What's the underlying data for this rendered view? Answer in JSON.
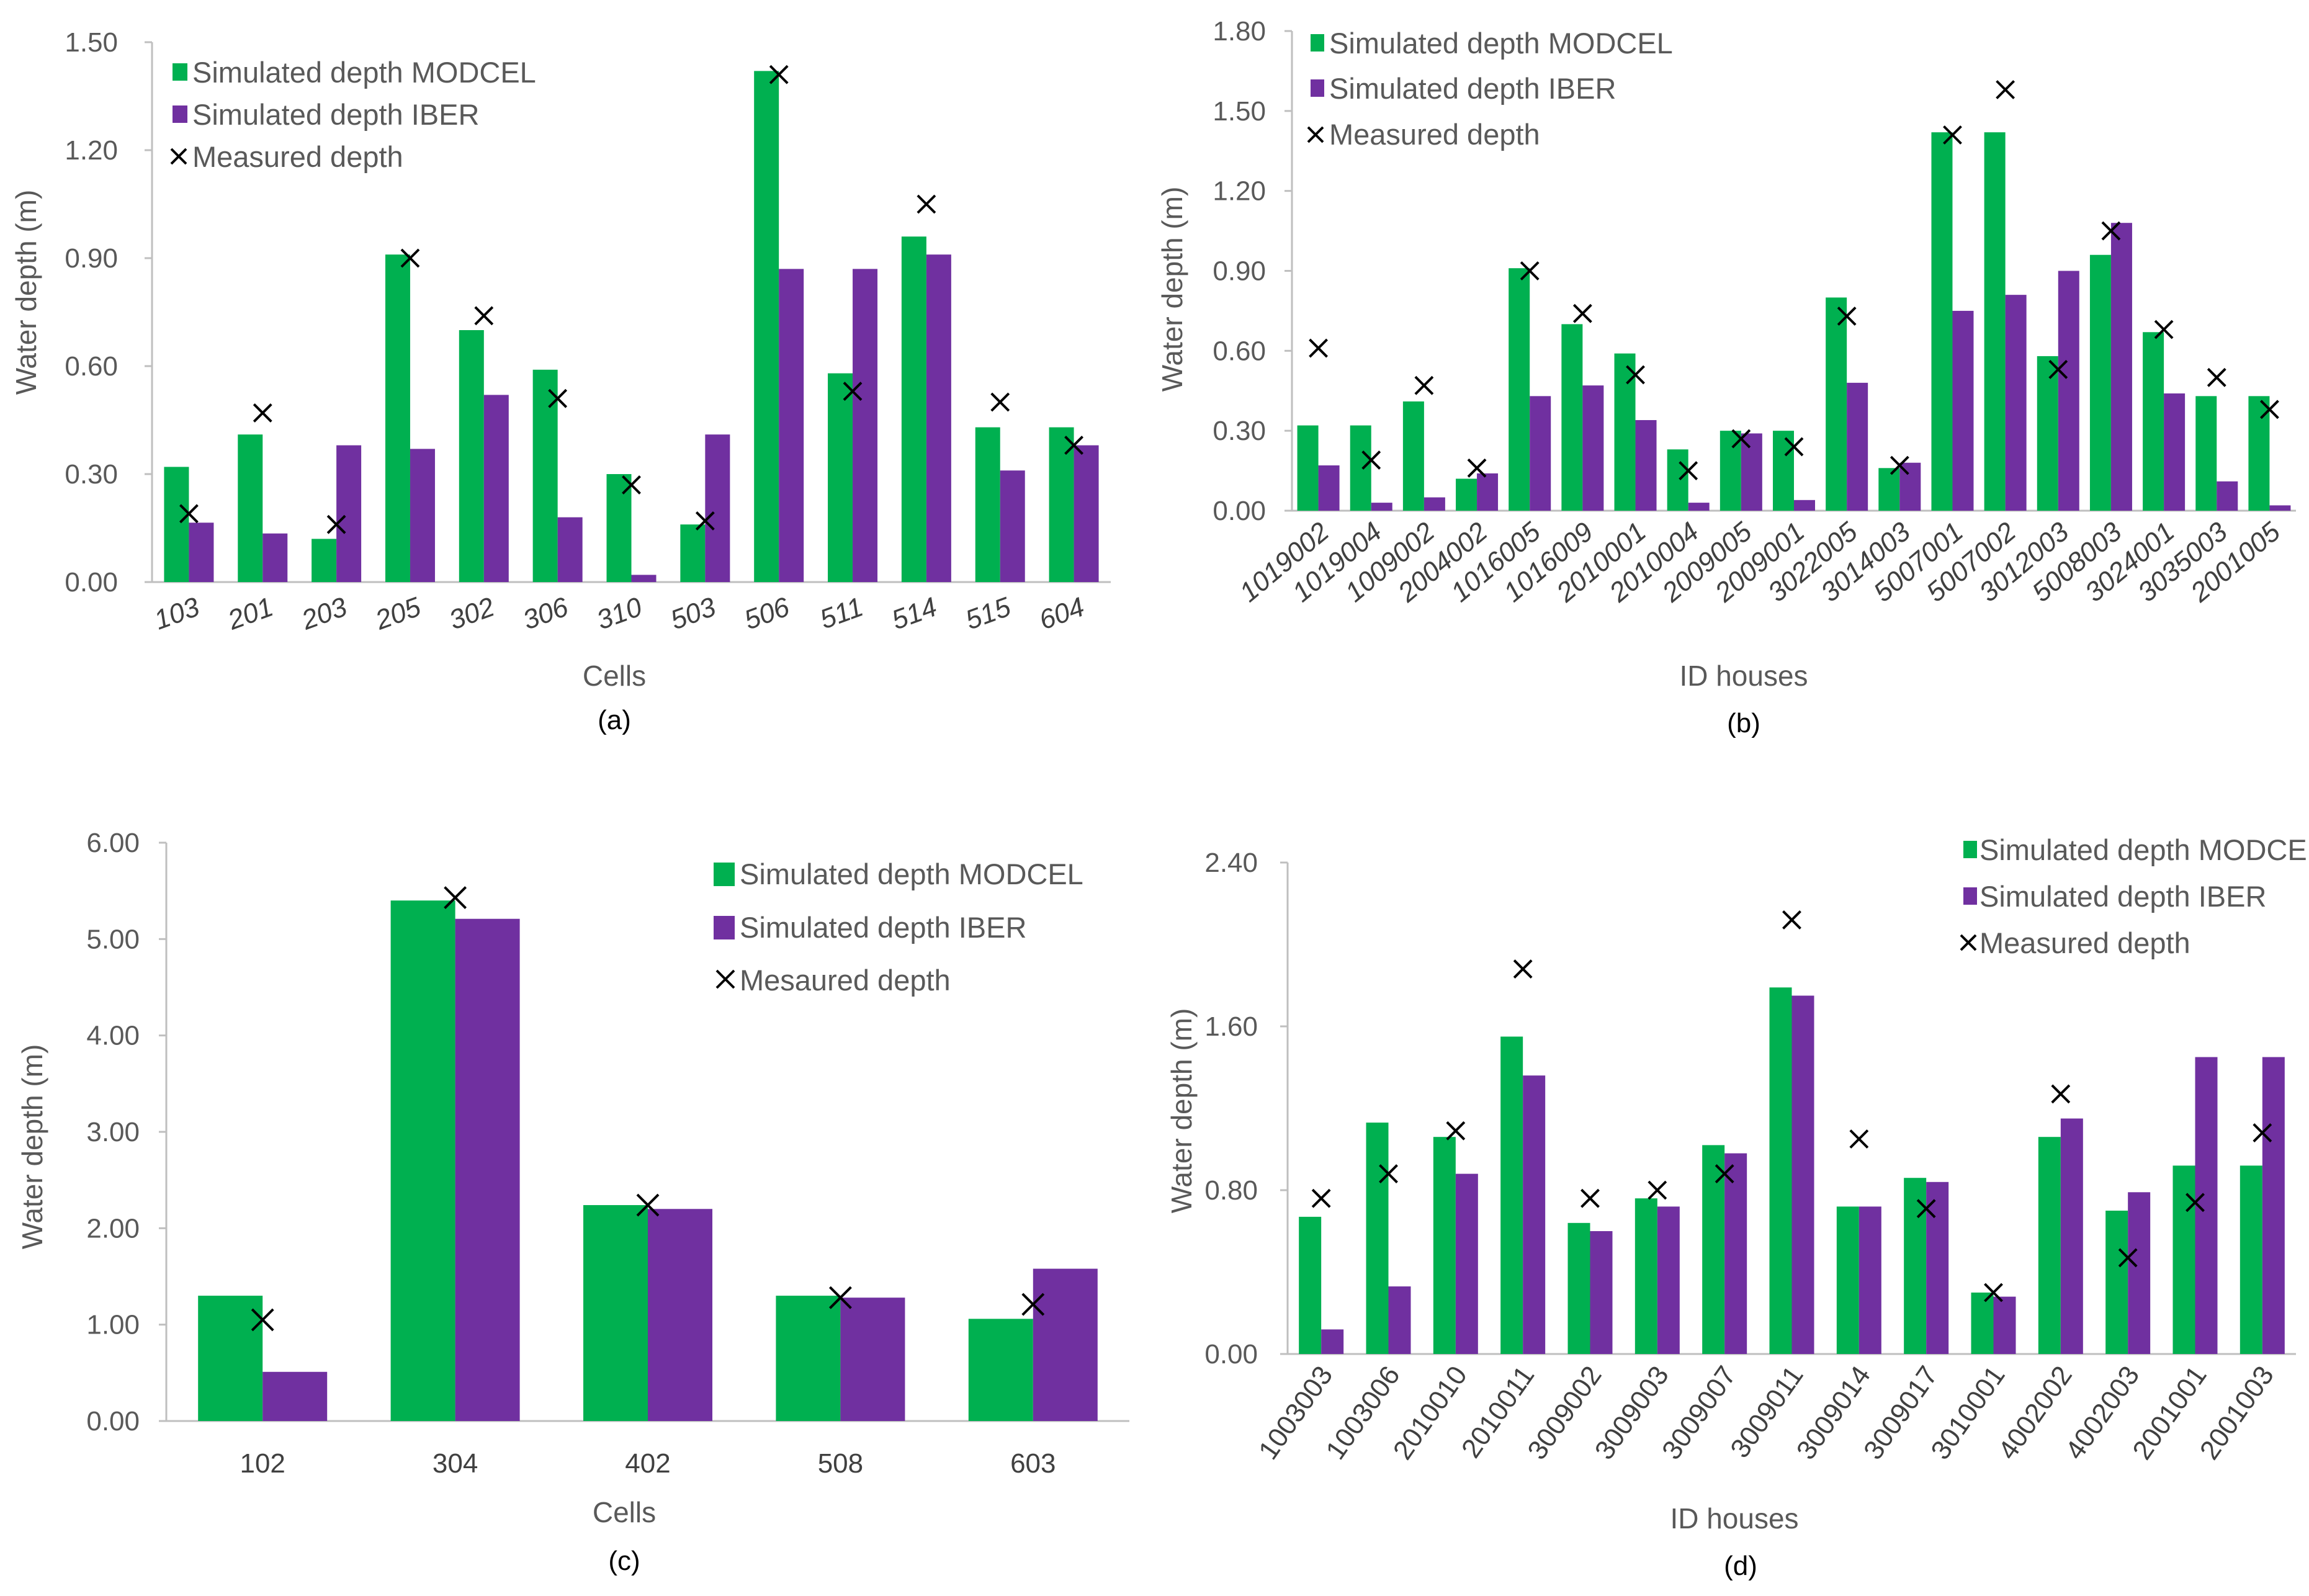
{
  "colors": {
    "modcel": "#00b050",
    "iber": "#7030a0",
    "measured": "#000000",
    "axis": "#bfbfbf",
    "text": "#595959"
  },
  "chart_data": [
    {
      "type": "bar",
      "caption": "(a)",
      "xlabel": "Cells",
      "ylabel": "Water depth (m)",
      "ylim": [
        0,
        1.5
      ],
      "yticks": [
        "0.00",
        "0.30",
        "0.60",
        "0.90",
        "1.20",
        "1.50"
      ],
      "categories": [
        "103",
        "201",
        "203",
        "205",
        "302",
        "306",
        "310",
        "503",
        "506",
        "511",
        "514",
        "515",
        "604"
      ],
      "series": [
        {
          "name": "Simulated depth MODCEL",
          "kind": "bar",
          "values": [
            0.32,
            0.41,
            0.12,
            0.91,
            0.7,
            0.59,
            0.3,
            0.16,
            1.42,
            0.58,
            0.96,
            0.43,
            0.43
          ]
        },
        {
          "name": "Simulated depth IBER",
          "kind": "bar",
          "values": [
            0.165,
            0.135,
            0.38,
            0.37,
            0.52,
            0.18,
            0.02,
            0.41,
            0.87,
            0.87,
            0.91,
            0.31,
            0.38
          ]
        },
        {
          "name": "Measured depth",
          "kind": "marker",
          "values": [
            0.19,
            0.47,
            0.16,
            0.9,
            0.74,
            0.51,
            0.27,
            0.17,
            1.41,
            0.53,
            1.05,
            0.5,
            0.38
          ]
        }
      ],
      "legend": "top-left"
    },
    {
      "type": "bar",
      "caption": "(b)",
      "xlabel": "ID houses",
      "ylabel": "Water depth (m)",
      "ylim": [
        0,
        1.8
      ],
      "yticks": [
        "0.00",
        "0.30",
        "0.60",
        "0.90",
        "1.20",
        "1.50",
        "1.80"
      ],
      "categories": [
        "1019002",
        "1019004",
        "1009002",
        "2004002",
        "1016005",
        "1016009",
        "2010001",
        "2010004",
        "2009005",
        "2009001",
        "3022005",
        "3014003",
        "5007001",
        "5007002",
        "3012003",
        "5008003",
        "3024001",
        "3035003",
        "2001005"
      ],
      "series": [
        {
          "name": "Simulated depth MODCEL",
          "kind": "bar",
          "values": [
            0.32,
            0.32,
            0.41,
            0.12,
            0.91,
            0.7,
            0.59,
            0.23,
            0.3,
            0.3,
            0.8,
            0.16,
            1.42,
            1.42,
            0.58,
            0.96,
            0.67,
            0.43,
            0.43
          ]
        },
        {
          "name": "Simulated depth IBER",
          "kind": "bar",
          "values": [
            0.17,
            0.03,
            0.05,
            0.14,
            0.43,
            0.47,
            0.34,
            0.03,
            0.29,
            0.04,
            0.48,
            0.18,
            0.75,
            0.81,
            0.9,
            1.08,
            0.44,
            0.11,
            0.02
          ]
        },
        {
          "name": "Measured depth",
          "kind": "marker",
          "values": [
            0.61,
            0.19,
            0.47,
            0.16,
            0.9,
            0.74,
            0.51,
            0.15,
            0.27,
            0.24,
            0.73,
            0.17,
            1.41,
            1.58,
            0.53,
            1.05,
            0.68,
            0.5,
            0.38
          ]
        }
      ],
      "legend": "top-left"
    },
    {
      "type": "bar",
      "caption": "(c)",
      "xlabel": "Cells",
      "ylabel": "Water depth  (m)",
      "ylim": [
        0,
        6
      ],
      "yticks": [
        "0.00",
        "1.00",
        "2.00",
        "3.00",
        "4.00",
        "5.00",
        "6.00"
      ],
      "categories": [
        "102",
        "304",
        "402",
        "508",
        "603"
      ],
      "series": [
        {
          "name": "Simulated depth MODCEL",
          "kind": "bar",
          "values": [
            1.3,
            5.4,
            2.24,
            1.3,
            1.06
          ]
        },
        {
          "name": "Simulated depth IBER",
          "kind": "bar",
          "values": [
            0.51,
            5.21,
            2.2,
            1.28,
            1.58
          ]
        },
        {
          "name": "Mesaured depth",
          "kind": "marker",
          "values": [
            1.05,
            5.43,
            2.24,
            1.28,
            1.21
          ]
        }
      ],
      "legend": "top-right"
    },
    {
      "type": "bar",
      "caption": "(d)",
      "xlabel": "ID houses",
      "ylabel": "Water depth (m)",
      "ylim": [
        0,
        2.4
      ],
      "yticks": [
        "0.00",
        "0.80",
        "1.60",
        "2.40"
      ],
      "categories": [
        "1003003",
        "1003006",
        "2010010",
        "2010011",
        "3009002",
        "3009003",
        "3009007",
        "3009011",
        "3009014",
        "3009017",
        "3010001",
        "4002002",
        "4002003",
        "2001001",
        "2001003"
      ],
      "series": [
        {
          "name": "Simulated depth MODCEL",
          "kind": "bar",
          "values": [
            0.67,
            1.13,
            1.06,
            1.55,
            0.64,
            0.76,
            1.02,
            1.79,
            0.72,
            0.86,
            0.3,
            1.06,
            0.7,
            0.92,
            0.92
          ]
        },
        {
          "name": "Simulated depth IBER",
          "kind": "bar",
          "values": [
            0.12,
            0.33,
            0.88,
            1.36,
            0.6,
            0.72,
            0.98,
            1.75,
            0.72,
            0.84,
            0.28,
            1.15,
            0.79,
            1.45,
            1.45
          ]
        },
        {
          "name": "Measured depth",
          "kind": "marker",
          "values": [
            0.76,
            0.88,
            1.09,
            1.88,
            0.76,
            0.8,
            0.88,
            2.12,
            1.05,
            0.71,
            0.3,
            1.27,
            0.47,
            0.74,
            1.08
          ]
        }
      ],
      "legend": "top-right"
    }
  ]
}
